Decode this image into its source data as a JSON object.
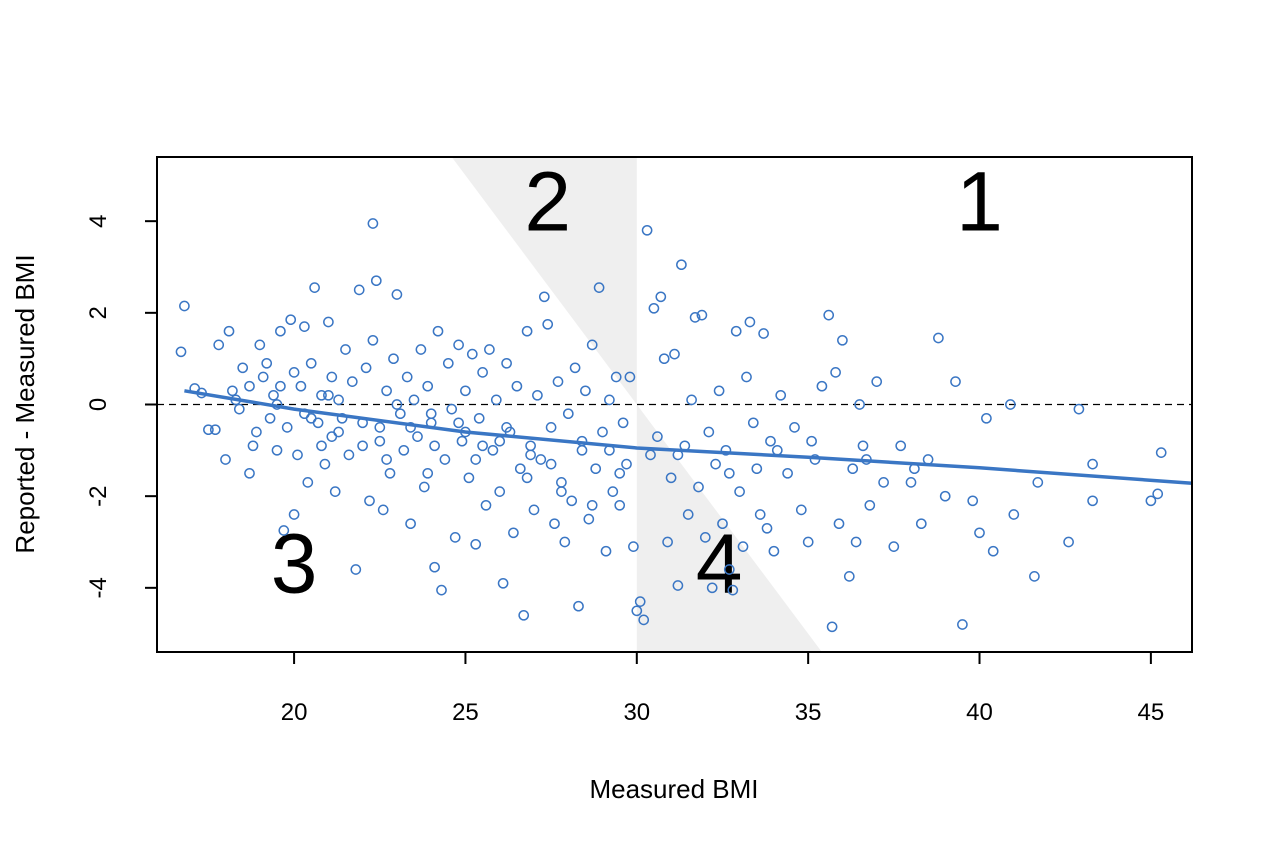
{
  "chart_data": {
    "type": "scatter",
    "xlabel": "Measured BMI",
    "ylabel": "Reported - Measured BMI",
    "xlim": [
      16,
      46.2
    ],
    "ylim": [
      -5.4,
      5.4
    ],
    "x_ticks": [
      20,
      25,
      30,
      35,
      40,
      45
    ],
    "y_ticks": [
      -4,
      -2,
      0,
      2,
      4
    ],
    "reference_line": {
      "y": 0,
      "style": "dashed"
    },
    "regions": [
      {
        "label": "1",
        "x": 40,
        "y": 3.8
      },
      {
        "label": "2",
        "x": 27.4,
        "y": 3.8
      },
      {
        "label": "3",
        "x": 20,
        "y": -4.1
      },
      {
        "label": "4",
        "x": 32.4,
        "y": -4.1
      }
    ],
    "shaded_regions": [
      {
        "polygon": [
          [
            24.6,
            5.4
          ],
          [
            30,
            5.4
          ],
          [
            30,
            0
          ]
        ]
      },
      {
        "polygon": [
          [
            30,
            0
          ],
          [
            35.4,
            -5.4
          ],
          [
            30,
            -5.4
          ]
        ]
      }
    ],
    "trend_line": {
      "x": [
        16.8,
        20,
        25,
        30,
        35,
        40,
        46.2
      ],
      "y": [
        0.3,
        -0.1,
        -0.6,
        -0.95,
        -1.15,
        -1.38,
        -1.72
      ]
    },
    "point_color": "#3A76C4",
    "line_color": "#3A76C4",
    "shade_color": "#EFEFEF",
    "points": [
      [
        16.7,
        1.15
      ],
      [
        16.8,
        2.15
      ],
      [
        17.1,
        0.35
      ],
      [
        17.3,
        0.25
      ],
      [
        17.5,
        -0.55
      ],
      [
        17.7,
        -0.55
      ],
      [
        17.8,
        1.3
      ],
      [
        18.0,
        -1.2
      ],
      [
        18.1,
        1.6
      ],
      [
        18.2,
        0.3
      ],
      [
        18.3,
        0.1
      ],
      [
        18.4,
        -0.1
      ],
      [
        18.5,
        0.8
      ],
      [
        18.7,
        -1.5
      ],
      [
        18.8,
        -0.9
      ],
      [
        18.9,
        -0.6
      ],
      [
        19.0,
        1.3
      ],
      [
        19.1,
        0.6
      ],
      [
        19.2,
        0.9
      ],
      [
        19.3,
        -0.3
      ],
      [
        19.4,
        0.2
      ],
      [
        19.5,
        -1.0
      ],
      [
        19.6,
        0.4
      ],
      [
        19.6,
        1.6
      ],
      [
        19.7,
        -2.75
      ],
      [
        19.8,
        -0.5
      ],
      [
        19.9,
        1.85
      ],
      [
        20.0,
        0.7
      ],
      [
        20.0,
        -2.4
      ],
      [
        20.1,
        -1.1
      ],
      [
        20.2,
        0.4
      ],
      [
        20.3,
        1.7
      ],
      [
        20.3,
        -0.2
      ],
      [
        20.4,
        -1.7
      ],
      [
        20.5,
        0.9
      ],
      [
        20.6,
        2.55
      ],
      [
        20.7,
        -0.4
      ],
      [
        20.8,
        0.2
      ],
      [
        20.9,
        -1.3
      ],
      [
        21.0,
        1.8
      ],
      [
        21.1,
        -0.7
      ],
      [
        21.1,
        0.6
      ],
      [
        21.2,
        -1.9
      ],
      [
        21.3,
        0.1
      ],
      [
        21.4,
        -0.3
      ],
      [
        21.5,
        1.2
      ],
      [
        21.6,
        -1.1
      ],
      [
        21.7,
        0.5
      ],
      [
        21.8,
        -3.6
      ],
      [
        21.9,
        2.5
      ],
      [
        22.0,
        -0.9
      ],
      [
        22.1,
        0.8
      ],
      [
        22.2,
        -2.1
      ],
      [
        22.3,
        1.4
      ],
      [
        22.3,
        3.95
      ],
      [
        22.4,
        2.7
      ],
      [
        22.5,
        -0.5
      ],
      [
        22.6,
        -2.3
      ],
      [
        22.7,
        0.3
      ],
      [
        22.8,
        -1.5
      ],
      [
        22.9,
        1.0
      ],
      [
        23.0,
        2.4
      ],
      [
        23.1,
        -0.2
      ],
      [
        23.2,
        -1.0
      ],
      [
        23.3,
        0.6
      ],
      [
        23.4,
        -2.6
      ],
      [
        23.5,
        0.1
      ],
      [
        23.6,
        -0.7
      ],
      [
        23.7,
        1.2
      ],
      [
        23.8,
        -1.8
      ],
      [
        23.9,
        0.4
      ],
      [
        24.0,
        -0.4
      ],
      [
        24.1,
        -3.55
      ],
      [
        24.2,
        1.6
      ],
      [
        24.3,
        -4.05
      ],
      [
        24.4,
        -1.2
      ],
      [
        24.5,
        0.9
      ],
      [
        24.6,
        -0.1
      ],
      [
        24.7,
        -2.9
      ],
      [
        24.8,
        1.3
      ],
      [
        24.9,
        -0.8
      ],
      [
        25.0,
        0.3
      ],
      [
        25.1,
        -1.6
      ],
      [
        25.2,
        1.1
      ],
      [
        25.3,
        -3.05
      ],
      [
        25.4,
        -0.3
      ],
      [
        25.5,
        0.7
      ],
      [
        25.6,
        -2.2
      ],
      [
        25.7,
        1.2
      ],
      [
        25.8,
        -1.0
      ],
      [
        25.9,
        0.1
      ],
      [
        26.0,
        -1.9
      ],
      [
        26.1,
        -3.9
      ],
      [
        26.2,
        0.9
      ],
      [
        26.3,
        -0.6
      ],
      [
        26.4,
        -2.8
      ],
      [
        26.5,
        0.4
      ],
      [
        26.6,
        -1.4
      ],
      [
        26.7,
        -4.6
      ],
      [
        26.8,
        1.6
      ],
      [
        26.9,
        -0.9
      ],
      [
        27.0,
        -2.3
      ],
      [
        27.1,
        0.2
      ],
      [
        27.2,
        -1.2
      ],
      [
        27.3,
        2.35
      ],
      [
        27.4,
        1.75
      ],
      [
        27.5,
        -0.5
      ],
      [
        27.6,
        -2.6
      ],
      [
        27.7,
        0.5
      ],
      [
        27.8,
        -1.7
      ],
      [
        27.9,
        -3.0
      ],
      [
        28.0,
        -0.2
      ],
      [
        28.1,
        -2.1
      ],
      [
        28.2,
        0.8
      ],
      [
        28.3,
        -4.4
      ],
      [
        28.4,
        -1.0
      ],
      [
        28.5,
        0.3
      ],
      [
        28.6,
        -2.5
      ],
      [
        28.7,
        1.3
      ],
      [
        28.8,
        -1.4
      ],
      [
        28.9,
        2.55
      ],
      [
        29.0,
        -0.6
      ],
      [
        29.1,
        -3.2
      ],
      [
        29.2,
        0.1
      ],
      [
        29.3,
        -1.9
      ],
      [
        29.4,
        0.6
      ],
      [
        29.5,
        -2.2
      ],
      [
        29.6,
        -0.4
      ],
      [
        29.7,
        -1.3
      ],
      [
        29.8,
        0.6
      ],
      [
        29.9,
        -3.1
      ],
      [
        30.0,
        -4.5
      ],
      [
        30.1,
        -4.3
      ],
      [
        30.2,
        -4.7
      ],
      [
        30.3,
        3.8
      ],
      [
        30.4,
        -1.1
      ],
      [
        30.5,
        2.1
      ],
      [
        30.6,
        -0.7
      ],
      [
        30.7,
        2.35
      ],
      [
        30.8,
        1.0
      ],
      [
        30.9,
        -3.0
      ],
      [
        31.0,
        -1.6
      ],
      [
        31.1,
        1.1
      ],
      [
        31.2,
        -3.95
      ],
      [
        31.3,
        3.05
      ],
      [
        31.4,
        -0.9
      ],
      [
        31.5,
        -2.4
      ],
      [
        31.6,
        0.1
      ],
      [
        31.7,
        1.9
      ],
      [
        31.8,
        -1.8
      ],
      [
        31.9,
        1.95
      ],
      [
        32.0,
        -2.9
      ],
      [
        32.1,
        -0.6
      ],
      [
        32.2,
        -4.0
      ],
      [
        32.3,
        -1.3
      ],
      [
        32.4,
        0.3
      ],
      [
        32.5,
        -2.6
      ],
      [
        32.6,
        -1.0
      ],
      [
        32.7,
        -3.6
      ],
      [
        32.8,
        -4.05
      ],
      [
        32.9,
        1.6
      ],
      [
        33.0,
        -1.9
      ],
      [
        33.1,
        -3.1
      ],
      [
        33.2,
        0.6
      ],
      [
        33.3,
        1.8
      ],
      [
        33.4,
        -0.4
      ],
      [
        33.5,
        -1.4
      ],
      [
        33.6,
        -2.4
      ],
      [
        33.7,
        1.55
      ],
      [
        33.8,
        -2.7
      ],
      [
        33.9,
        -0.8
      ],
      [
        34.0,
        -3.2
      ],
      [
        34.2,
        0.2
      ],
      [
        34.4,
        -1.5
      ],
      [
        34.6,
        -0.5
      ],
      [
        34.8,
        -2.3
      ],
      [
        35.0,
        -3.0
      ],
      [
        35.2,
        -1.2
      ],
      [
        35.4,
        0.4
      ],
      [
        35.6,
        1.95
      ],
      [
        35.7,
        -4.85
      ],
      [
        35.8,
        0.7
      ],
      [
        35.9,
        -2.6
      ],
      [
        36.0,
        1.4
      ],
      [
        36.2,
        -3.75
      ],
      [
        36.3,
        -1.4
      ],
      [
        36.4,
        -3.0
      ],
      [
        36.5,
        0.0
      ],
      [
        36.6,
        -0.9
      ],
      [
        36.8,
        -2.2
      ],
      [
        37.0,
        0.5
      ],
      [
        37.2,
        -1.7
      ],
      [
        37.5,
        -3.1
      ],
      [
        37.7,
        -0.9
      ],
      [
        38.0,
        -1.7
      ],
      [
        38.3,
        -2.6
      ],
      [
        38.5,
        -1.2
      ],
      [
        38.8,
        1.45
      ],
      [
        39.0,
        -2.0
      ],
      [
        39.3,
        0.5
      ],
      [
        39.5,
        -4.8
      ],
      [
        39.8,
        -2.1
      ],
      [
        40.0,
        -2.8
      ],
      [
        40.2,
        -0.3
      ],
      [
        40.4,
        -3.2
      ],
      [
        40.9,
        0.0
      ],
      [
        41.0,
        -2.4
      ],
      [
        41.7,
        -1.7
      ],
      [
        41.6,
        -3.75
      ],
      [
        42.6,
        -3.0
      ],
      [
        42.9,
        -0.1
      ],
      [
        43.3,
        -1.3
      ],
      [
        43.3,
        -2.1
      ],
      [
        45.0,
        -2.1
      ],
      [
        45.2,
        -1.95
      ],
      [
        45.3,
        -1.05
      ],
      [
        20.5,
        -0.3
      ],
      [
        21.3,
        -0.6
      ],
      [
        22.5,
        -0.8
      ],
      [
        23.4,
        -0.5
      ],
      [
        24.1,
        -0.9
      ],
      [
        24.8,
        -0.4
      ],
      [
        25.5,
        -0.9
      ],
      [
        26.2,
        -0.5
      ],
      [
        26.9,
        -1.1
      ],
      [
        27.5,
        -1.3
      ],
      [
        28.4,
        -0.8
      ],
      [
        29.2,
        -1.0
      ],
      [
        21.0,
        0.2
      ],
      [
        22.0,
        -0.4
      ],
      [
        23.0,
        0.0
      ],
      [
        24.0,
        -0.2
      ],
      [
        25.0,
        -0.6
      ],
      [
        26.0,
        -0.8
      ],
      [
        19.5,
        0.0
      ],
      [
        18.7,
        0.4
      ],
      [
        20.8,
        -0.9
      ],
      [
        22.7,
        -1.2
      ],
      [
        23.9,
        -1.5
      ],
      [
        25.3,
        -1.2
      ],
      [
        26.8,
        -1.6
      ],
      [
        27.8,
        -1.9
      ],
      [
        28.7,
        -2.2
      ],
      [
        29.5,
        -1.5
      ],
      [
        31.2,
        -1.1
      ],
      [
        32.7,
        -1.5
      ],
      [
        34.1,
        -1.0
      ],
      [
        35.1,
        -0.8
      ],
      [
        36.7,
        -1.2
      ],
      [
        38.1,
        -1.4
      ]
    ]
  }
}
